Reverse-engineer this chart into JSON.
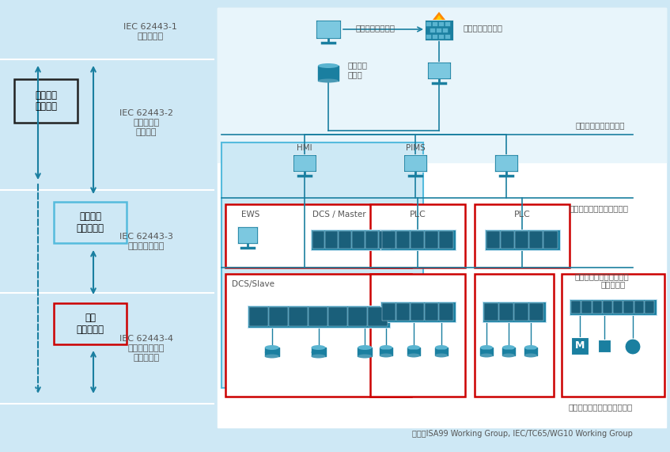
{
  "bg_color": "#cee8f5",
  "teal": "#1a7fa0",
  "teal_light": "#5ab4d0",
  "teal_mid": "#2e9dbf",
  "red": "#cc0000",
  "gray_text": "#555555",
  "dark_text": "#222222",
  "iec1_label": "IEC 62443-1\n一般的事項",
  "iec2_label": "IEC 62443-2\n管理・運用\nプロセス",
  "iec3_label": "IEC 62443-3\n技術・システム",
  "iec4_label": "IEC 62443-4\nコンポーネント\n・デバイス",
  "asset_owner": "アセット\nオーナー",
  "service_provider": "サービス\nプロバイダ",
  "product_supplier": "製品\nサプライヤ",
  "info_network": "情報ネットワーク",
  "firewall": "ファイアウォール",
  "production_server": "生産管理\nサーバ",
  "control_info_network": "制御情報ネットワーク",
  "hmi_label": "HMI",
  "pims_label": "PIMS",
  "control_network": "コントロールネットワーク",
  "ews_label": "EWS",
  "dcs_master_label": "DCS / Master",
  "plc_label": "PLC",
  "field_network": "フィールドネットワーク",
  "dcs_slave": "DCS/Slave",
  "sensor_bus": "センサバス",
  "sensor_actuator": "センサ・アクチュエータなど",
  "source_note": "出典：ISA99 Working Group, IEC/TC65/WG10 Working Group"
}
